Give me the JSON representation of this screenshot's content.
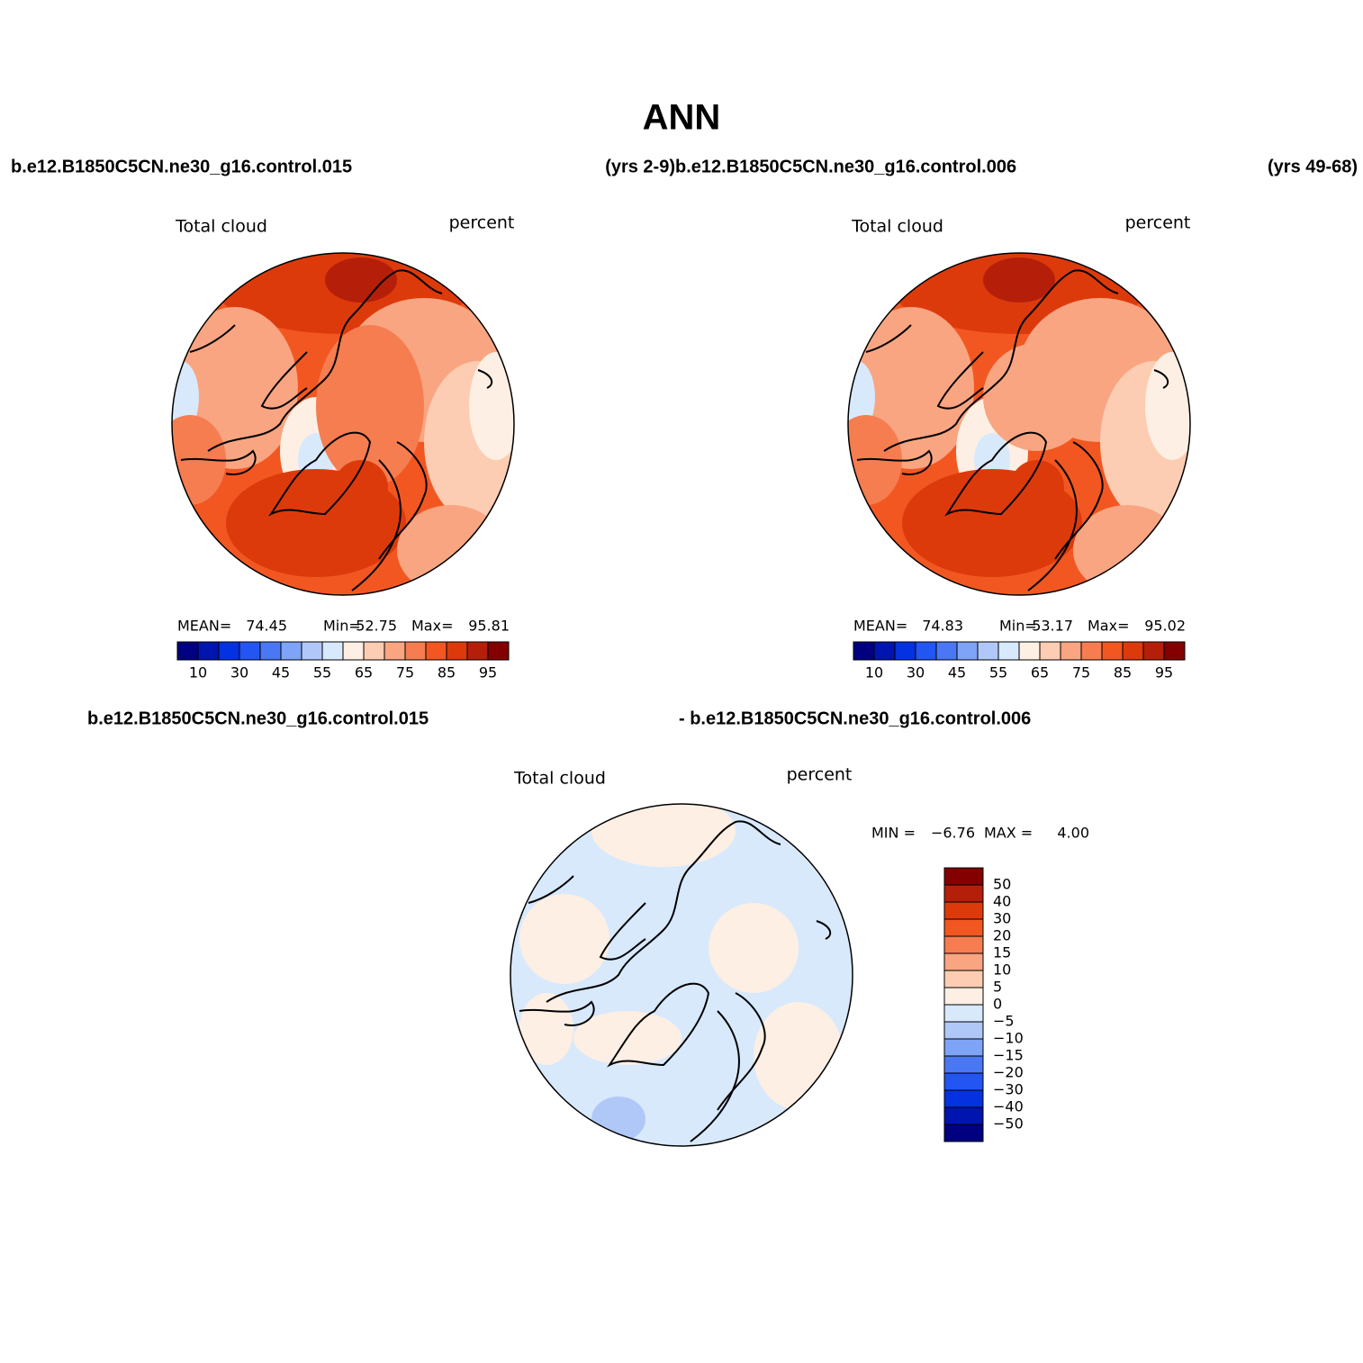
{
  "title": "ANN",
  "top_header": [
    "b.e12.B1850C5CN.ne30_g16.control.015",
    "(yrs 2-9)",
    "b.e12.B1850C5CN.ne30_g16.control.006",
    "(yrs 49-68)"
  ],
  "bottom_header": [
    "b.e12.B1850C5CN.ne30_g16.control.015",
    "- b.e12.B1850C5CN.ne30_g16.control.006"
  ],
  "palette": [
    "#000080",
    "#0014b0",
    "#0432e0",
    "#2255f2",
    "#4a78f5",
    "#7ea3f7",
    "#b0c8f8",
    "#d8e9fc",
    "#fdefe3",
    "#fccdb2",
    "#f9a582",
    "#f57d50",
    "#f25722",
    "#dd3a0c",
    "#b51f0a",
    "#840000"
  ],
  "panels": [
    {
      "variable": "Total cloud",
      "units": "percent",
      "stats": [
        "MEAN=",
        "74.45",
        "Min=",
        "52.75",
        "Max=",
        "95.81"
      ],
      "colorbar_labels": [
        "10",
        "30",
        "45",
        "55",
        "65",
        "75",
        "85",
        "95"
      ]
    },
    {
      "variable": "Total cloud",
      "units": "percent",
      "stats": [
        "MEAN=",
        "74.83",
        "Min=",
        "53.17",
        "Max=",
        "95.02"
      ],
      "colorbar_labels": [
        "10",
        "30",
        "45",
        "55",
        "65",
        "75",
        "85",
        "95"
      ]
    },
    {
      "variable": "Total cloud",
      "units": "percent",
      "stats": [
        "MIN =",
        "−6.76",
        "MAX =",
        "4.00"
      ],
      "colorbar_labels": [
        "50",
        "40",
        "30",
        "20",
        "15",
        "10",
        "5",
        "0",
        "−5",
        "−10",
        "−15",
        "−20",
        "−30",
        "−40",
        "−50"
      ]
    }
  ]
}
